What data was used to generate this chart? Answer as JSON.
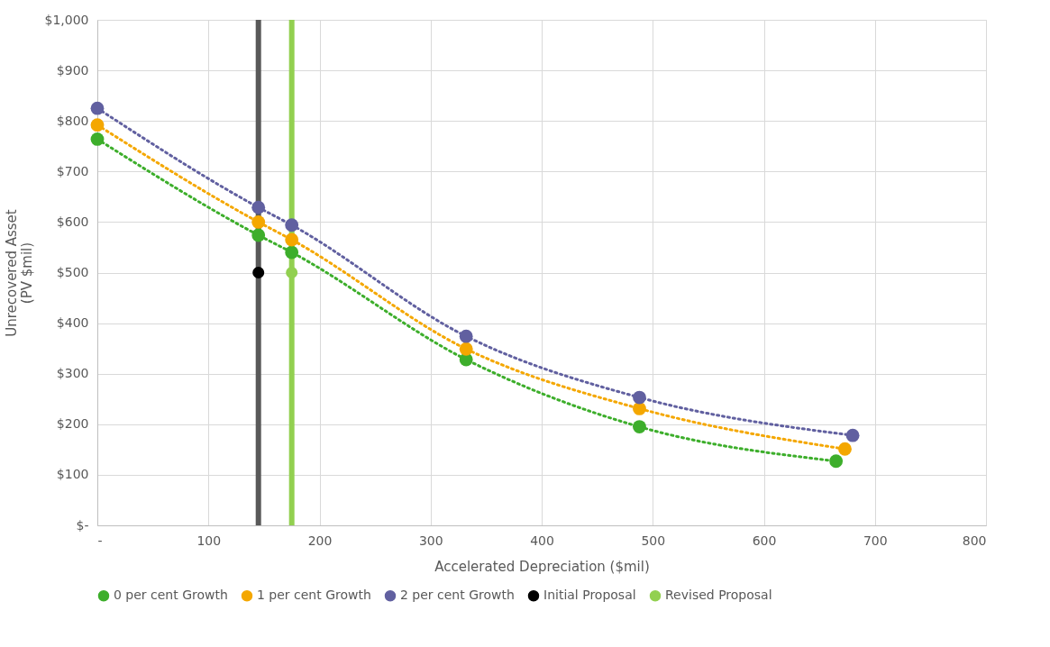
{
  "chart_data": {
    "type": "line",
    "xlabel": "Accelerated Depreciation ($mil)",
    "ylabel": "Unrecovered Asset\n(PV $mil)",
    "series": [
      {
        "name": "0 per cent Growth",
        "color": "#3dae2b",
        "x": [
          0,
          145,
          175,
          332,
          488,
          665
        ],
        "values": [
          764,
          574,
          540,
          328,
          195,
          127
        ]
      },
      {
        "name": "1 per cent Growth",
        "color": "#f4a700",
        "x": [
          0,
          145,
          175,
          332,
          488,
          673
        ],
        "values": [
          792,
          600,
          565,
          349,
          231,
          151
        ]
      },
      {
        "name": "2 per cent Growth",
        "color": "#6160a0",
        "x": [
          0,
          145,
          175,
          332,
          488,
          680
        ],
        "values": [
          825,
          629,
          594,
          374,
          253,
          178
        ]
      },
      {
        "name": "Initial Proposal",
        "color": "#000000",
        "type": "scatter",
        "x": [
          145
        ],
        "values": [
          500
        ]
      },
      {
        "name": "Revised Proposal",
        "color": "#92d050",
        "type": "scatter",
        "x": [
          175
        ],
        "values": [
          500
        ]
      }
    ],
    "ref_lines": [
      {
        "axis": "x",
        "value": 145,
        "color": "#595959"
      },
      {
        "axis": "x",
        "value": 175,
        "color": "#92d050"
      }
    ],
    "xlim": [
      0,
      800
    ],
    "xticks": [
      {
        "value": 0,
        "label": "-"
      },
      100,
      200,
      300,
      400,
      500,
      600,
      700,
      800
    ],
    "ylim": [
      0,
      1000
    ],
    "yticks": [
      {
        "value": 0,
        "label": "$-"
      },
      {
        "value": 100,
        "label": "$100"
      },
      {
        "value": 200,
        "label": "$200"
      },
      {
        "value": 300,
        "label": "$300"
      },
      {
        "value": 400,
        "label": "$400"
      },
      {
        "value": 500,
        "label": "$500"
      },
      {
        "value": 600,
        "label": "$600"
      },
      {
        "value": 700,
        "label": "$700"
      },
      {
        "value": 800,
        "label": "$800"
      },
      {
        "value": 900,
        "label": "$900"
      },
      {
        "value": 1000,
        "label": "$1,000"
      }
    ],
    "grid": true,
    "legend": "bottom",
    "marker": "circle",
    "line_style": "dotted"
  }
}
